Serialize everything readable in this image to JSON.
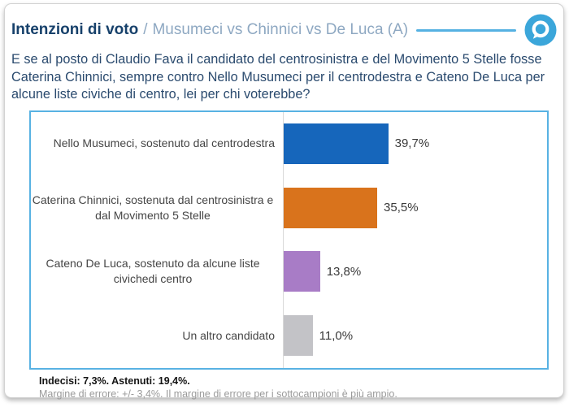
{
  "header": {
    "title": "Intenzioni di voto",
    "separator": "/",
    "subtitle": "Musumeci vs Chinnici vs De Luca (A)",
    "accent_color": "#55b1e2",
    "logo_color": "#3ba6da",
    "logo_name": "quorum-q-speech-bubble-logo"
  },
  "question": "E se al posto di Claudio Fava il candidato del centrosinistra e del Movimento 5 Stelle fosse Caterina Chinnici, sempre contro Nello Musumeci per il centrodestra e Cateno De Luca per alcune liste civiche di centro, lei per chi voterebbe?",
  "chart_data": {
    "type": "bar",
    "orientation": "horizontal",
    "value_axis": {
      "min": 0,
      "max": 100,
      "unit": "%",
      "gridlines": false
    },
    "keys": [
      "musumeci",
      "chinnici",
      "de-luca",
      "altro-candidato"
    ],
    "categories": [
      "Nello Musumeci, sostenuto dal centrodestra",
      "Caterina Chinnici, sostenuta dal centrosinistra e\ndal Movimento 5 Stelle",
      "Cateno De Luca, sostenuto da alcune liste\ncivichedi centro",
      "Un altro candidato"
    ],
    "values": [
      39.7,
      35.5,
      13.8,
      11.0
    ],
    "value_labels": [
      "39,7%",
      "35,5%",
      "13,8%",
      "11,0%"
    ],
    "bar_colors": [
      "#1666bb",
      "#d9731c",
      "#a87cc6",
      "#c3c3c7"
    ]
  },
  "footnote": {
    "line1": "Indecisi: 7,3%. Astenuti: 19,4%.",
    "line2": "Margine di errore: +/- 3,4%. Il margine di errore per i sottocampioni è più ampio."
  }
}
